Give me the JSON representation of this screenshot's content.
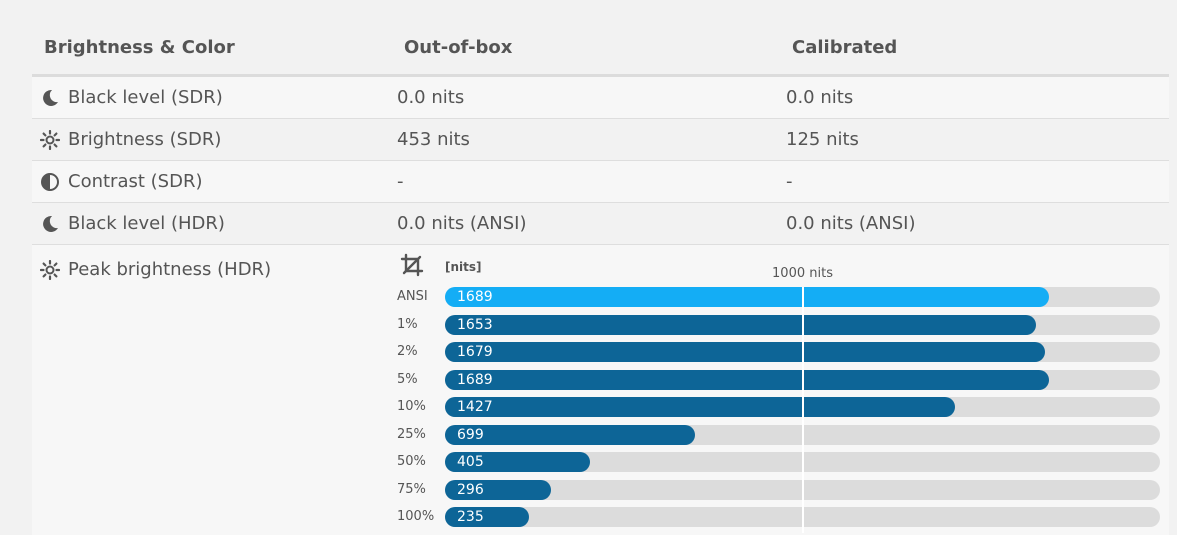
{
  "header": {
    "col1": "Brightness & Color",
    "col2": "Out-of-box",
    "col3": "Calibrated"
  },
  "rows": [
    {
      "icon": "moon-icon",
      "label": "Black level (SDR)",
      "out_of_box": "0.0 nits",
      "calibrated": "0.0 nits"
    },
    {
      "icon": "sun-icon",
      "label": "Brightness (SDR)",
      "out_of_box": "453 nits",
      "calibrated": "125 nits"
    },
    {
      "icon": "contrast-icon",
      "label": "Contrast (SDR)",
      "out_of_box": "-",
      "calibrated": "-"
    },
    {
      "icon": "moon-icon",
      "label": "Black level (HDR)",
      "out_of_box": "0.0 nits (ANSI)",
      "calibrated": "0.0 nits (ANSI)"
    }
  ],
  "peak": {
    "icon": "sun-icon",
    "label": "Peak brightness (HDR)"
  },
  "chart_data": {
    "type": "bar",
    "orientation": "horizontal",
    "unit_label": "[nits]",
    "reference_label": "1000 nits",
    "reference_value": 1000,
    "xlim": [
      0,
      2000
    ],
    "categories": [
      "ANSI",
      "1%",
      "2%",
      "5%",
      "10%",
      "25%",
      "50%",
      "75%",
      "100%"
    ],
    "values": [
      1689,
      1653,
      1679,
      1689,
      1427,
      699,
      405,
      296,
      235
    ],
    "highlight_index": 0,
    "colors": {
      "highlight": "#14adf5",
      "bar": "#0d6597",
      "track": "#dcdcdc"
    }
  }
}
